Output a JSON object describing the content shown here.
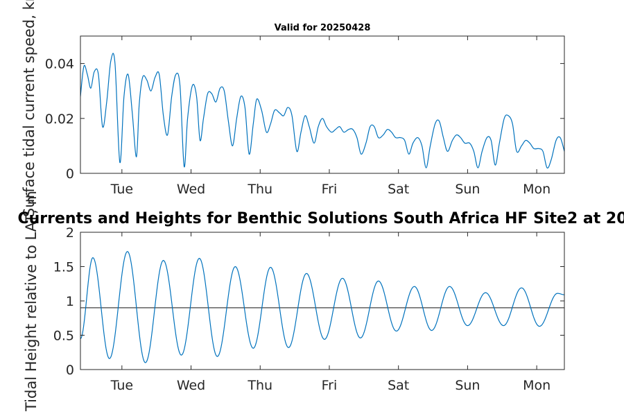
{
  "chart_data": [
    {
      "type": "line",
      "title": "Valid for 20250428",
      "ylabel": "Surface tidal current speed, kn",
      "xlabel": "",
      "xlim": [
        0,
        7
      ],
      "ylim": [
        0,
        0.05
      ],
      "grid": false,
      "x_ticks": [
        {
          "value": 0.6,
          "label": "Tue"
        },
        {
          "value": 1.6,
          "label": "Wed"
        },
        {
          "value": 2.6,
          "label": "Thu"
        },
        {
          "value": 3.6,
          "label": "Fri"
        },
        {
          "value": 4.6,
          "label": "Sat"
        },
        {
          "value": 5.6,
          "label": "Sun"
        },
        {
          "value": 6.6,
          "label": "Mon"
        }
      ],
      "y_ticks": [
        {
          "value": 0,
          "label": "0"
        },
        {
          "value": 0.02,
          "label": "0.02"
        },
        {
          "value": 0.04,
          "label": "0.04"
        }
      ],
      "series": [
        {
          "color": "#0072BD",
          "x": [
            0.0,
            0.05,
            0.1,
            0.15,
            0.2,
            0.26,
            0.32,
            0.38,
            0.44,
            0.5,
            0.57,
            0.63,
            0.69,
            0.75,
            0.81,
            0.85,
            0.9,
            0.96,
            1.02,
            1.08,
            1.14,
            1.2,
            1.26,
            1.32,
            1.38,
            1.44,
            1.5,
            1.55,
            1.62,
            1.68,
            1.73,
            1.78,
            1.84,
            1.9,
            1.96,
            2.02,
            2.08,
            2.14,
            2.2,
            2.26,
            2.32,
            2.38,
            2.44,
            2.5,
            2.55,
            2.62,
            2.69,
            2.75,
            2.81,
            2.88,
            2.94,
            3.0,
            3.06,
            3.13,
            3.19,
            3.25,
            3.31,
            3.38,
            3.44,
            3.5,
            3.56,
            3.63,
            3.69,
            3.75,
            3.81,
            3.88,
            3.94,
            4.0,
            4.06,
            4.13,
            4.19,
            4.25,
            4.31,
            4.38,
            4.44,
            4.5,
            4.56,
            4.63,
            4.69,
            4.75,
            4.81,
            4.88,
            4.94,
            5.0,
            5.06,
            5.13,
            5.19,
            5.25,
            5.31,
            5.38,
            5.44,
            5.5,
            5.56,
            5.63,
            5.69,
            5.75,
            5.81,
            5.88,
            5.94,
            6.0,
            6.06,
            6.13,
            6.19,
            6.25,
            6.31,
            6.38,
            6.44,
            6.5,
            6.56,
            6.63,
            6.69,
            6.75,
            6.81,
            6.88,
            6.94,
            7.0
          ],
          "values": [
            0.028,
            0.039,
            0.036,
            0.031,
            0.037,
            0.036,
            0.017,
            0.026,
            0.041,
            0.04,
            0.004,
            0.028,
            0.036,
            0.022,
            0.006,
            0.025,
            0.035,
            0.034,
            0.03,
            0.035,
            0.036,
            0.021,
            0.014,
            0.028,
            0.036,
            0.032,
            0.0025,
            0.02,
            0.032,
            0.028,
            0.012,
            0.02,
            0.029,
            0.029,
            0.026,
            0.031,
            0.03,
            0.019,
            0.01,
            0.02,
            0.028,
            0.024,
            0.007,
            0.018,
            0.027,
            0.023,
            0.015,
            0.018,
            0.023,
            0.022,
            0.021,
            0.024,
            0.021,
            0.008,
            0.015,
            0.021,
            0.017,
            0.011,
            0.017,
            0.02,
            0.017,
            0.015,
            0.016,
            0.017,
            0.015,
            0.016,
            0.016,
            0.013,
            0.007,
            0.011,
            0.017,
            0.017,
            0.013,
            0.014,
            0.016,
            0.015,
            0.013,
            0.013,
            0.012,
            0.007,
            0.011,
            0.013,
            0.01,
            0.002,
            0.01,
            0.018,
            0.019,
            0.013,
            0.008,
            0.012,
            0.014,
            0.013,
            0.011,
            0.011,
            0.008,
            0.002,
            0.008,
            0.013,
            0.012,
            0.003,
            0.011,
            0.02,
            0.021,
            0.018,
            0.008,
            0.01,
            0.012,
            0.011,
            0.009,
            0.009,
            0.008,
            0.002,
            0.005,
            0.012,
            0.013,
            0.008
          ]
        }
      ]
    },
    {
      "type": "line",
      "title": "Currents and Heights for Benthic Solutions South Africa HF Site2 at 20",
      "ylabel": "Tidal Height relative to LAT, m",
      "xlabel": "",
      "xlim": [
        0,
        7
      ],
      "ylim": [
        0,
        2
      ],
      "grid": false,
      "x_ticks": [
        {
          "value": 0.6,
          "label": "Tue"
        },
        {
          "value": 1.6,
          "label": "Wed"
        },
        {
          "value": 2.6,
          "label": "Thu"
        },
        {
          "value": 3.6,
          "label": "Fri"
        },
        {
          "value": 4.6,
          "label": "Sat"
        },
        {
          "value": 5.6,
          "label": "Sun"
        },
        {
          "value": 6.6,
          "label": "Mon"
        }
      ],
      "y_ticks": [
        {
          "value": 0,
          "label": "0"
        },
        {
          "value": 0.5,
          "label": "0.5"
        },
        {
          "value": 1,
          "label": "1"
        },
        {
          "value": 1.5,
          "label": "1.5"
        },
        {
          "value": 2,
          "label": "2"
        }
      ],
      "reference_line": {
        "value": 0.9,
        "color": "#404040"
      },
      "series": [
        {
          "color": "#0072BD",
          "extrema": [
            {
              "x": 0.0,
              "y": 0.45
            },
            {
              "x": 0.18,
              "y": 1.63
            },
            {
              "x": 0.42,
              "y": 0.16
            },
            {
              "x": 0.68,
              "y": 1.72
            },
            {
              "x": 0.94,
              "y": 0.1
            },
            {
              "x": 1.2,
              "y": 1.59
            },
            {
              "x": 1.46,
              "y": 0.21
            },
            {
              "x": 1.72,
              "y": 1.62
            },
            {
              "x": 1.98,
              "y": 0.19
            },
            {
              "x": 2.24,
              "y": 1.5
            },
            {
              "x": 2.5,
              "y": 0.31
            },
            {
              "x": 2.75,
              "y": 1.49
            },
            {
              "x": 3.01,
              "y": 0.32
            },
            {
              "x": 3.27,
              "y": 1.4
            },
            {
              "x": 3.53,
              "y": 0.44
            },
            {
              "x": 3.79,
              "y": 1.33
            },
            {
              "x": 4.05,
              "y": 0.46
            },
            {
              "x": 4.31,
              "y": 1.29
            },
            {
              "x": 4.57,
              "y": 0.56
            },
            {
              "x": 4.83,
              "y": 1.21
            },
            {
              "x": 5.08,
              "y": 0.57
            },
            {
              "x": 5.34,
              "y": 1.21
            },
            {
              "x": 5.6,
              "y": 0.64
            },
            {
              "x": 5.86,
              "y": 1.12
            },
            {
              "x": 6.12,
              "y": 0.64
            },
            {
              "x": 6.38,
              "y": 1.19
            },
            {
              "x": 6.64,
              "y": 0.63
            },
            {
              "x": 6.9,
              "y": 1.11
            },
            {
              "x": 7.0,
              "y": 1.09
            }
          ]
        }
      ]
    }
  ]
}
